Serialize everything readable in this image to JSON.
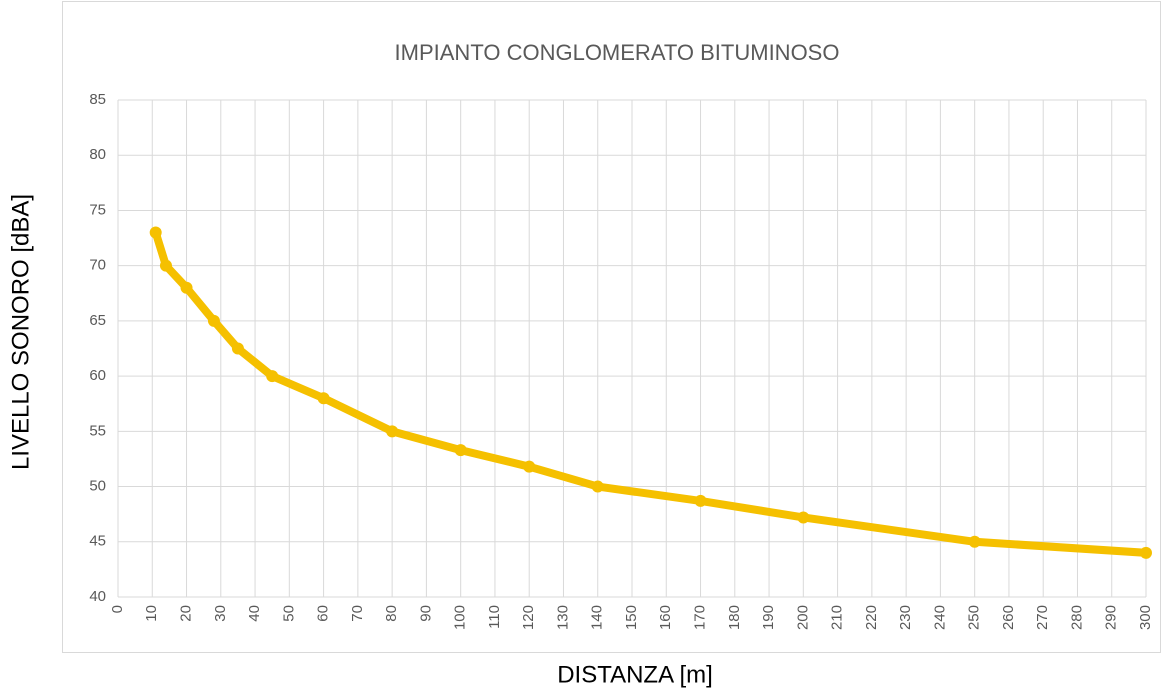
{
  "chart_data": {
    "type": "line",
    "title": "IMPIANTO CONGLOMERATO BITUMINOSO",
    "x_label": "DISTANZA [m]",
    "y_label": "LIVELLO SONORO [dBA]",
    "x": [
      11,
      14,
      20,
      28,
      35,
      45,
      60,
      80,
      100,
      120,
      140,
      170,
      200,
      250,
      300
    ],
    "series": [
      {
        "name": "LIVELLO SONORO",
        "color": "#f5c000",
        "values": [
          73,
          70,
          68,
          65,
          62.5,
          60,
          58,
          55,
          53.3,
          51.8,
          50,
          48.7,
          47.2,
          45,
          44
        ]
      }
    ],
    "xlim": [
      0,
      300
    ],
    "xticks": [
      0,
      10,
      20,
      30,
      40,
      50,
      60,
      70,
      80,
      90,
      100,
      110,
      120,
      130,
      140,
      150,
      160,
      170,
      180,
      190,
      200,
      210,
      220,
      230,
      240,
      250,
      260,
      270,
      280,
      290,
      300
    ],
    "ylim": [
      40,
      85
    ],
    "yticks": [
      40,
      45,
      50,
      55,
      60,
      65,
      70,
      75,
      80,
      85
    ],
    "grid": true
  }
}
